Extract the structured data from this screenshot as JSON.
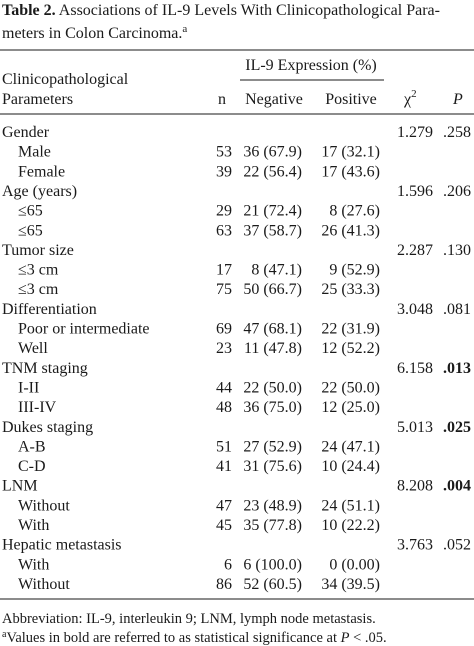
{
  "header": {
    "label": "Table 2.",
    "title_lines": [
      "Associations of IL-9 Levels With Clinicopathological Para-",
      "meters in Colon Carcinoma."
    ],
    "title_note": "a"
  },
  "table": {
    "span_header": "IL-9 Expression (%)",
    "col_label_lines": [
      "Clinicopathological",
      "Parameters"
    ],
    "col_n": "n",
    "col_negative": "Negative",
    "col_positive": "Positive",
    "col_chi": "χ",
    "col_chi_sup": "2",
    "col_p": "P",
    "groups": [
      {
        "name": "Gender",
        "chi2": "1.279",
        "p": ".258",
        "bold": false,
        "rows": [
          [
            "Male",
            "53",
            "36 (67.9)",
            "17 (32.1)"
          ],
          [
            "Female",
            "39",
            "22 (56.4)",
            "17 (43.6)"
          ]
        ]
      },
      {
        "name": "Age (years)",
        "chi2": "1.596",
        "p": ".206",
        "bold": false,
        "rows": [
          [
            "≤65",
            "29",
            "21 (72.4)",
            "8 (27.6)"
          ],
          [
            "≤65",
            "63",
            "37 (58.7)",
            "26 (41.3)"
          ]
        ]
      },
      {
        "name": "Tumor size",
        "chi2": "2.287",
        "p": ".130",
        "bold": false,
        "rows": [
          [
            "≤3 cm",
            "17",
            "8 (47.1)",
            "9 (52.9)"
          ],
          [
            "≤3 cm",
            "75",
            "50 (66.7)",
            "25 (33.3)"
          ]
        ]
      },
      {
        "name": "Differentiation",
        "chi2": "3.048",
        "p": ".081",
        "bold": false,
        "rows": [
          [
            "Poor or intermediate",
            "69",
            "47 (68.1)",
            "22 (31.9)"
          ],
          [
            "Well",
            "23",
            "11 (47.8)",
            "12 (52.2)"
          ]
        ]
      },
      {
        "name": "TNM staging",
        "chi2": "6.158",
        "p": ".013",
        "bold": true,
        "rows": [
          [
            "I-II",
            "44",
            "22 (50.0)",
            "22 (50.0)"
          ],
          [
            "III-IV",
            "48",
            "36 (75.0)",
            "12 (25.0)"
          ]
        ]
      },
      {
        "name": "Dukes staging",
        "chi2": "5.013",
        "p": ".025",
        "bold": true,
        "rows": [
          [
            "A-B",
            "51",
            "27 (52.9)",
            "24 (47.1)"
          ],
          [
            "C-D",
            "41",
            "31 (75.6)",
            "10 (24.4)"
          ]
        ]
      },
      {
        "name": "LNM",
        "chi2": "8.208",
        "p": ".004",
        "bold": true,
        "rows": [
          [
            "Without",
            "47",
            "23 (48.9)",
            "24 (51.1)"
          ],
          [
            "With",
            "45",
            "35 (77.8)",
            "10 (22.2)"
          ]
        ]
      },
      {
        "name": "Hepatic metastasis",
        "chi2": "3.763",
        "p": ".052",
        "bold": false,
        "rows": [
          [
            "With",
            "6",
            "6 (100.0)",
            "0 (0.00)"
          ],
          [
            "Without",
            "86",
            "52 (60.5)",
            "34 (39.5)"
          ]
        ]
      }
    ]
  },
  "footnotes": {
    "abbreviation": "Abbreviation: IL-9, interleukin 9; LNM, lymph node metastasis.",
    "note_mark": "a",
    "note_text": "Values in bold are referred to as statistical significance at ",
    "note_p": "P",
    "note_end": " < .05."
  }
}
